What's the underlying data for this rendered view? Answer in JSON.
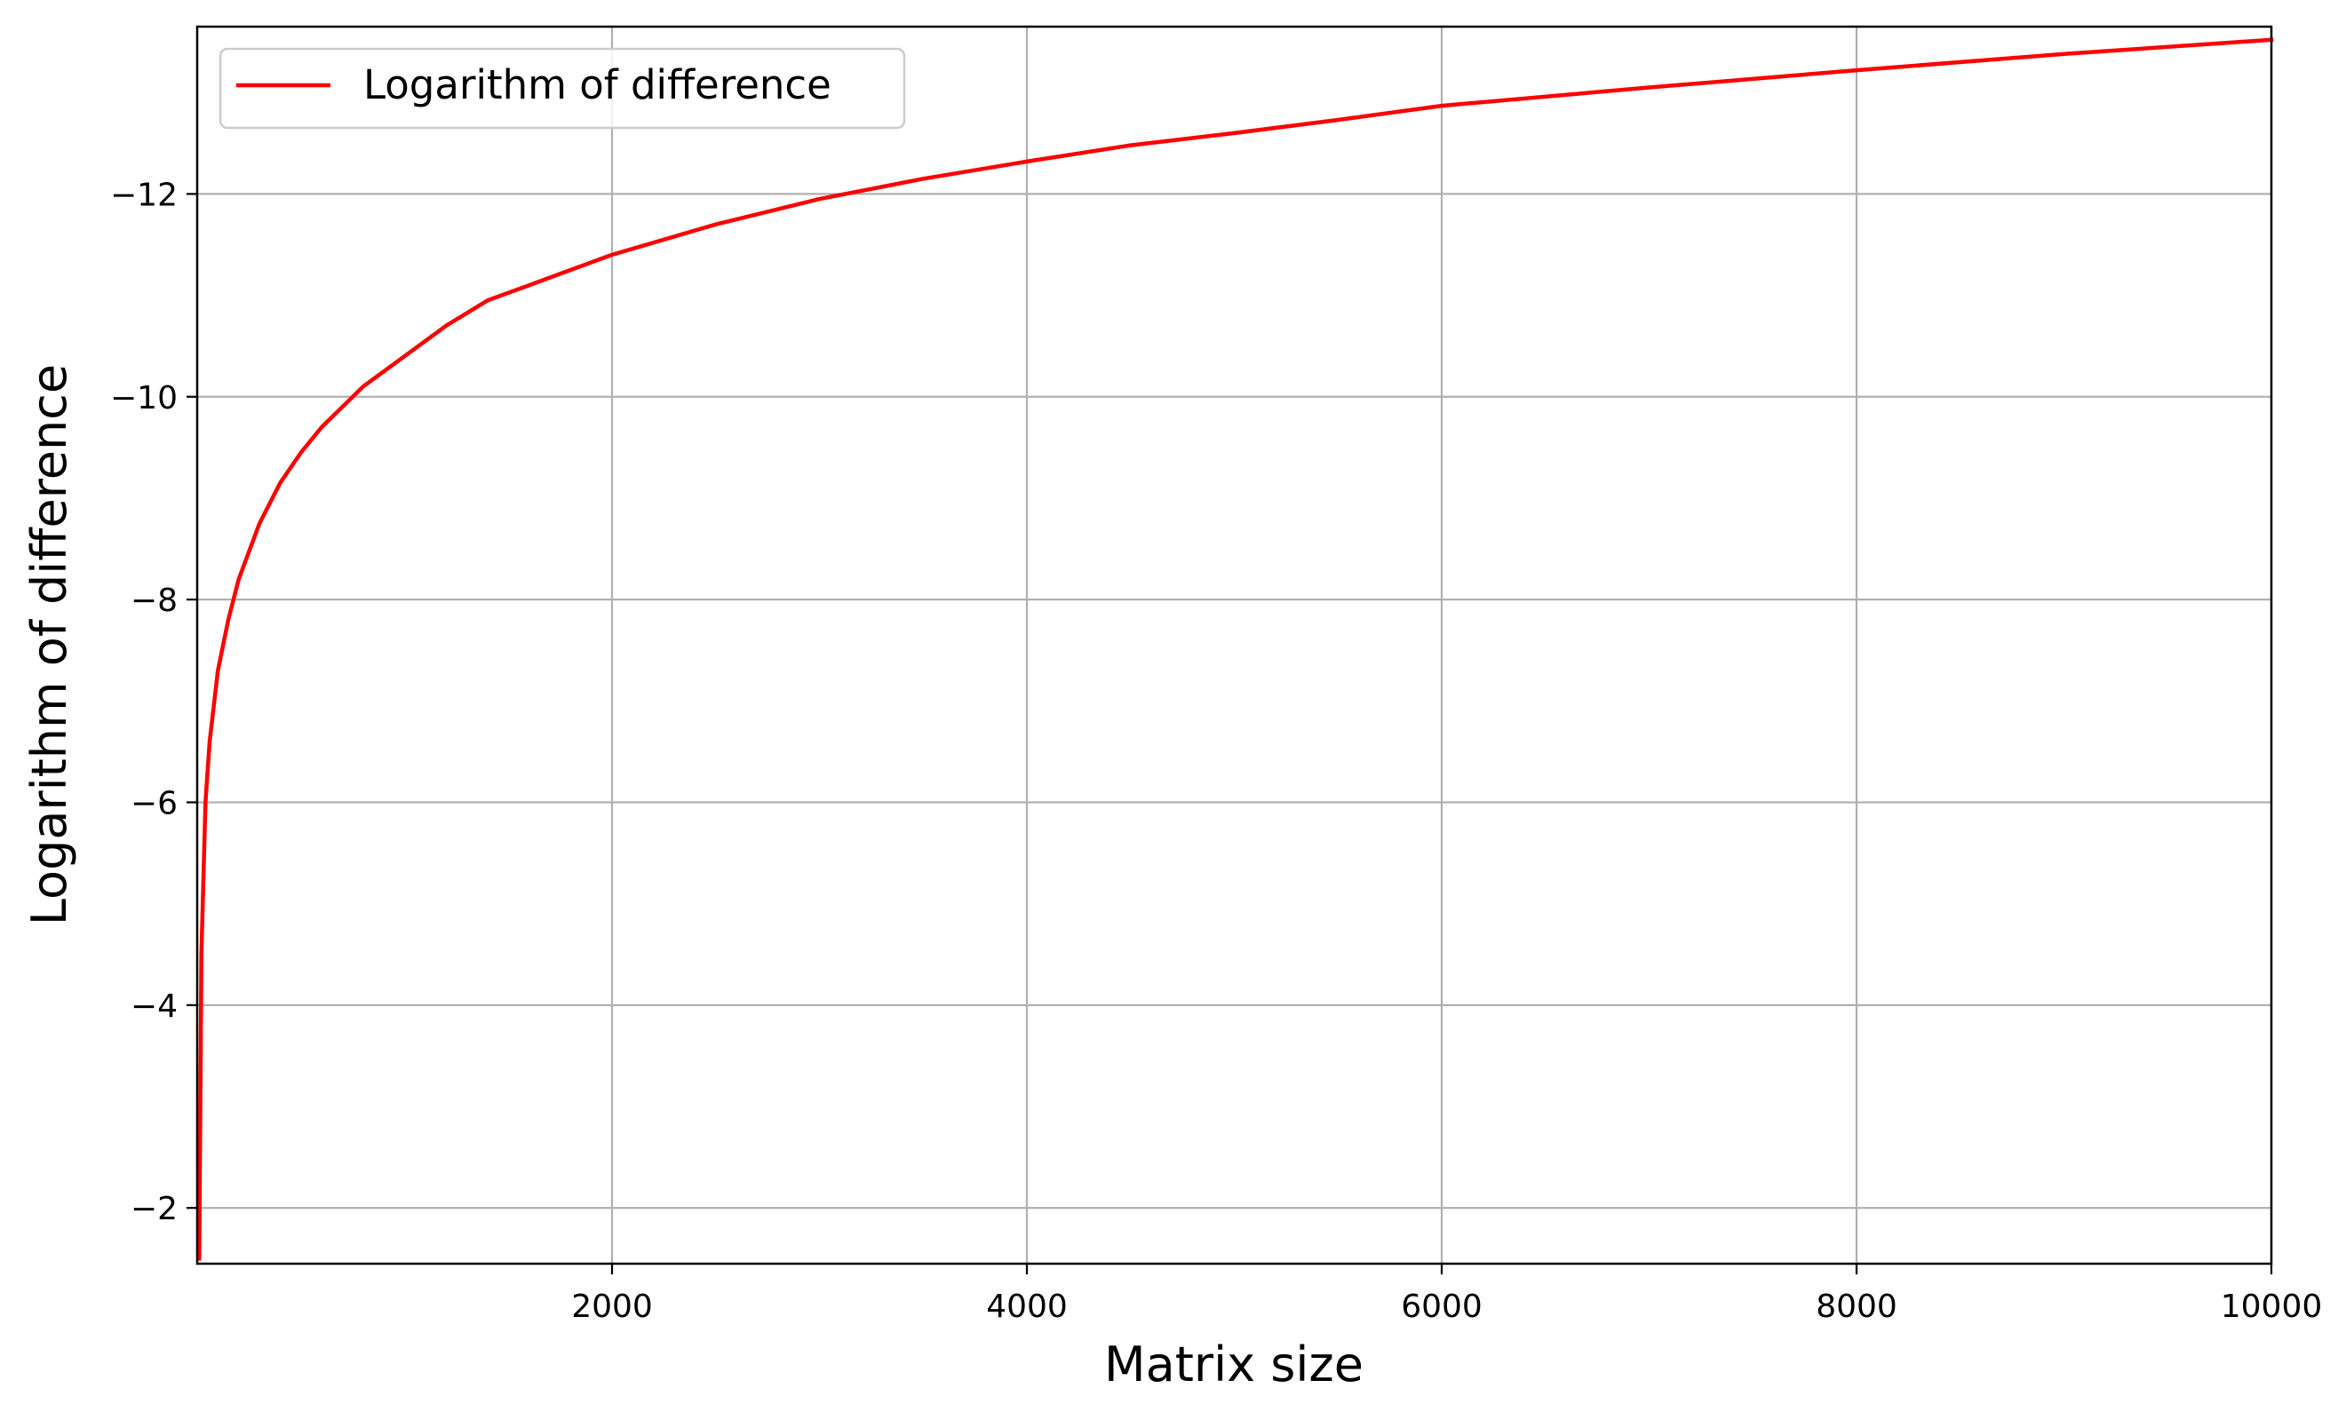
{
  "chart_data": {
    "type": "line",
    "title": "",
    "xlabel": "Matrix size",
    "ylabel": "Logarithm of difference",
    "xlim": [
      0,
      10000
    ],
    "ylim": [
      -1.45,
      -13.65
    ],
    "y_axis_inverted": true,
    "grid": true,
    "legend_position": "top-left",
    "x_ticks": [
      {
        "value": 2000,
        "label": "2000"
      },
      {
        "value": 4000,
        "label": "4000"
      },
      {
        "value": 6000,
        "label": "6000"
      },
      {
        "value": 8000,
        "label": "8000"
      },
      {
        "value": 10000,
        "label": "10000"
      }
    ],
    "y_ticks": [
      {
        "value": -2,
        "label": "−2"
      },
      {
        "value": -4,
        "label": "−4"
      },
      {
        "value": -6,
        "label": "−6"
      },
      {
        "value": -8,
        "label": "−8"
      },
      {
        "value": -10,
        "label": "−10"
      },
      {
        "value": -12,
        "label": "−12"
      }
    ],
    "series": [
      {
        "name": "Logarithm of difference",
        "color": "#ff0000",
        "x": [
          10,
          20,
          40,
          60,
          100,
          150,
          200,
          300,
          400,
          500,
          600,
          800,
          1000,
          1200,
          1400,
          1600,
          1800,
          2000,
          2500,
          3000,
          3500,
          4000,
          4500,
          5000,
          5500,
          6000,
          7000,
          8000,
          9000,
          10000
        ],
        "y": [
          -1.5,
          -4.5,
          -6.0,
          -6.6,
          -7.3,
          -7.8,
          -8.2,
          -8.75,
          -9.15,
          -9.45,
          -9.7,
          -10.1,
          -10.4,
          -10.7,
          -10.95,
          -11.1,
          -11.25,
          -11.4,
          -11.7,
          -11.95,
          -12.15,
          -12.32,
          -12.48,
          -12.6,
          -12.73,
          -12.87,
          -13.05,
          -13.22,
          -13.38,
          -13.52
        ]
      }
    ]
  }
}
